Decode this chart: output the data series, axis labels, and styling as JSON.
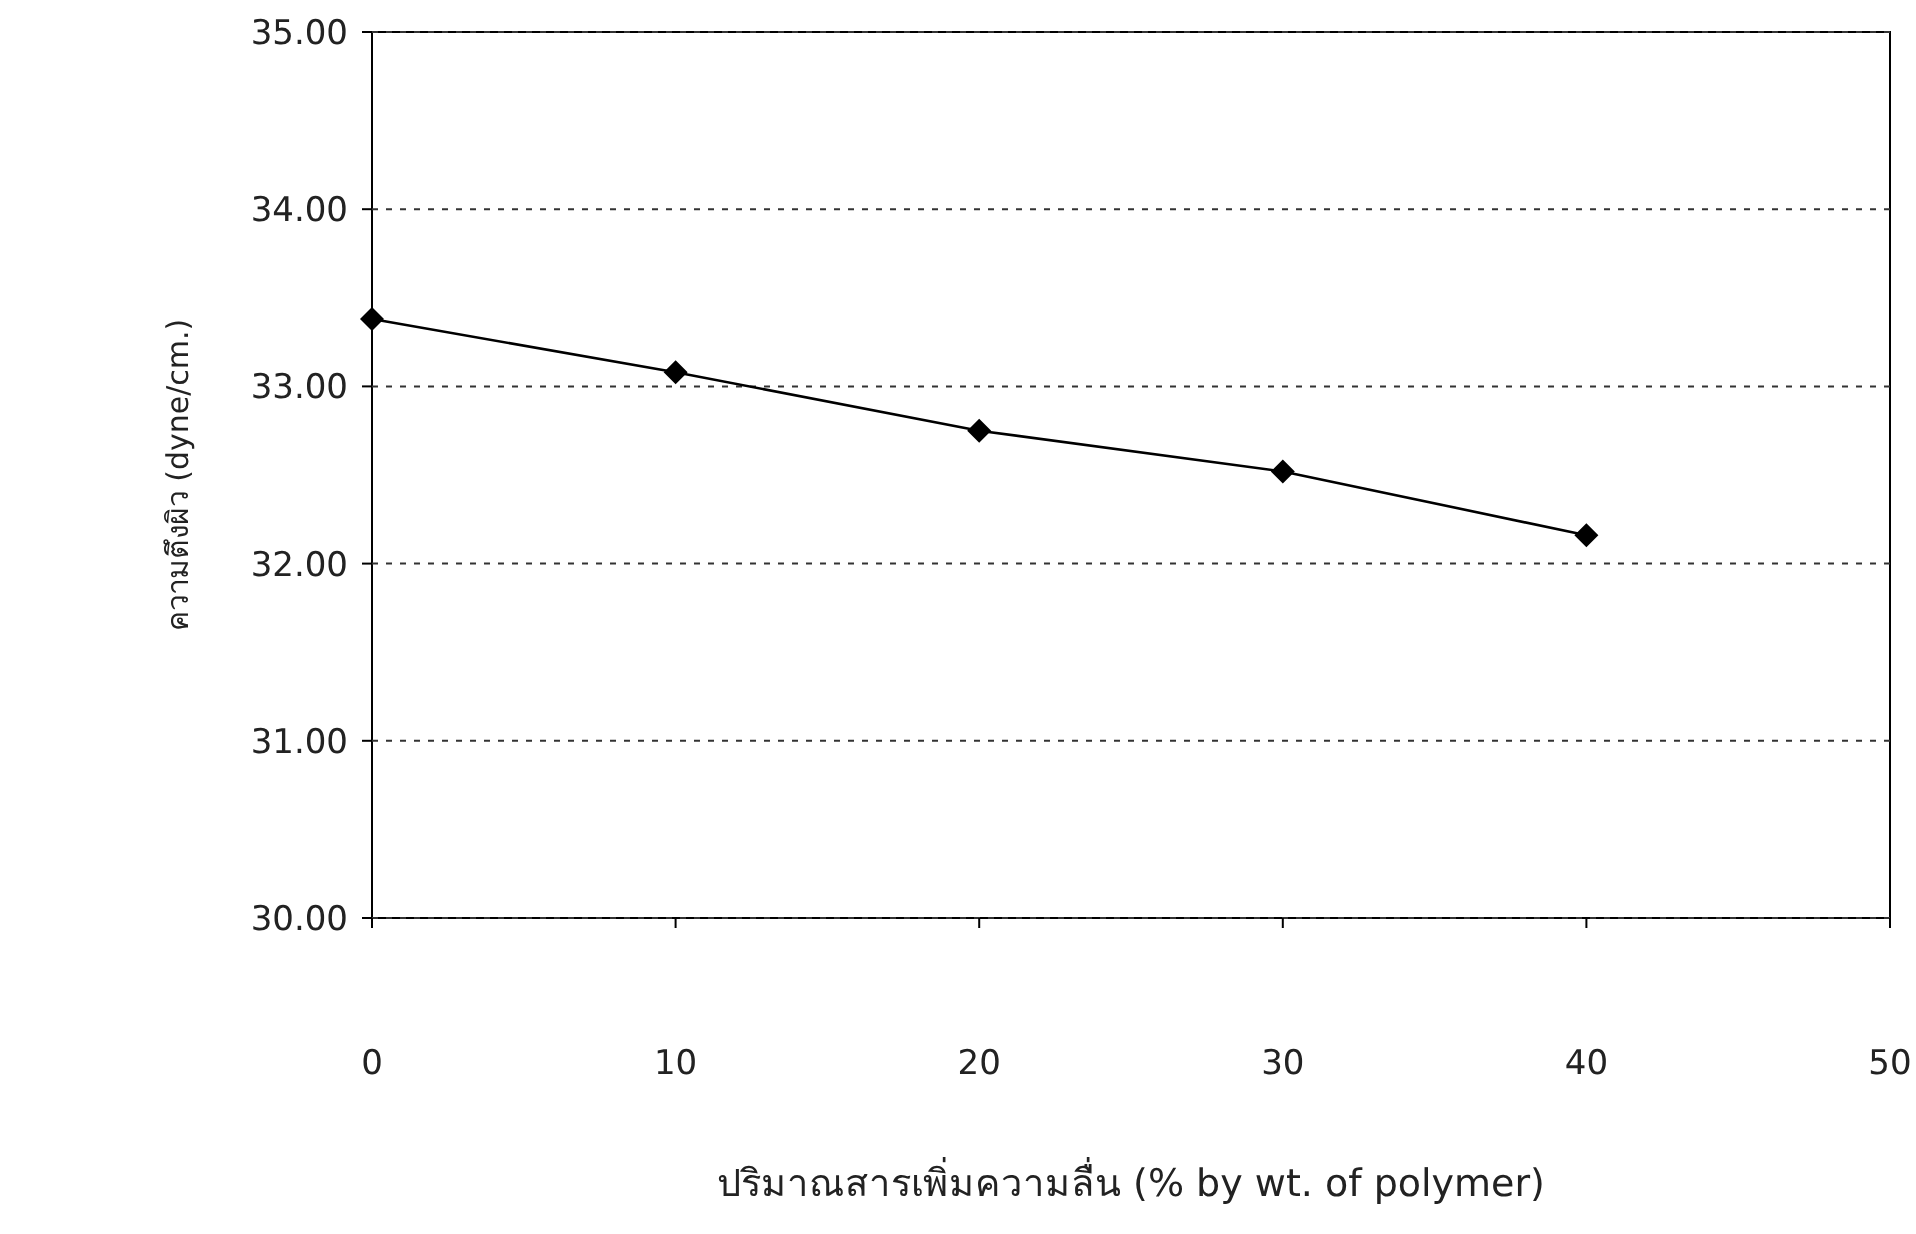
{
  "chart_data": {
    "type": "line",
    "xlabel": "ปริมาณสารเพิ่มความลื่น (% by wt. of polymer)",
    "ylabel": "ความตึงผิว (dyne/cm.)",
    "x": [
      0,
      10,
      20,
      30,
      40
    ],
    "series": [
      {
        "color": "#000000",
        "values": [
          33.38,
          33.08,
          32.75,
          32.52,
          32.16
        ]
      }
    ],
    "xlim": [
      0,
      50
    ],
    "xticks": [
      0,
      10,
      20,
      30,
      40,
      50
    ],
    "ylim": [
      30,
      35
    ],
    "yticks": [
      {
        "value": 30,
        "label": "30.00"
      },
      {
        "value": 31,
        "label": "31.00"
      },
      {
        "value": 32,
        "label": "32.00"
      },
      {
        "value": 33,
        "label": "33.00"
      },
      {
        "value": 34,
        "label": "34.00"
      },
      {
        "value": 35,
        "label": "35.00"
      }
    ],
    "grid": "y",
    "marker": "diamond",
    "line_style": "solid"
  }
}
